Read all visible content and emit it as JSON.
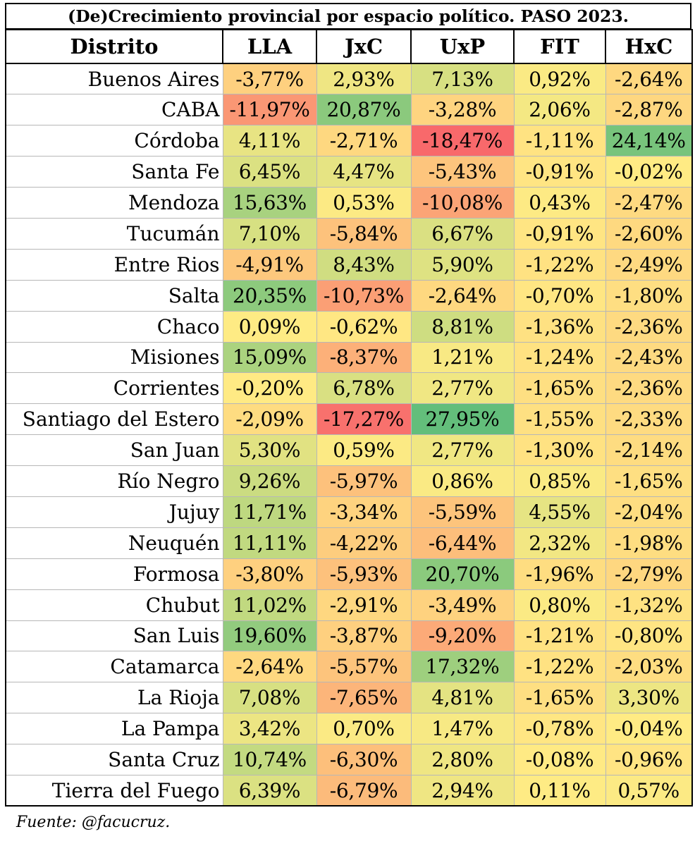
{
  "title": "(De)Crecimiento provincial por espacio político. PASO 2023.",
  "source": "Fuente: @facucruz.",
  "chart_data": {
    "type": "table",
    "title": "(De)Crecimiento provincial por espacio político. PASO 2023.",
    "row_header": "Distrito",
    "columns": [
      "LLA",
      "JxC",
      "UxP",
      "FIT",
      "HxC"
    ],
    "rows": [
      {
        "district": "Buenos Aires",
        "labels": [
          "-3,77%",
          "2,93%",
          "7,13%",
          "0,92%",
          "-2,64%"
        ],
        "values": [
          -3.77,
          2.93,
          7.13,
          0.92,
          -2.64
        ]
      },
      {
        "district": "CABA",
        "labels": [
          "-11,97%",
          "20,87%",
          "-3,28%",
          "2,06%",
          "-2,87%"
        ],
        "values": [
          -11.97,
          20.87,
          -3.28,
          2.06,
          -2.87
        ]
      },
      {
        "district": "Córdoba",
        "labels": [
          "4,11%",
          "-2,71%",
          "-18,47%",
          "-1,11%",
          "24,14%"
        ],
        "values": [
          4.11,
          -2.71,
          -18.47,
          -1.11,
          24.14
        ]
      },
      {
        "district": "Santa Fe",
        "labels": [
          "6,45%",
          "4,47%",
          "-5,43%",
          "-0,91%",
          "-0,02%"
        ],
        "values": [
          6.45,
          4.47,
          -5.43,
          -0.91,
          -0.02
        ]
      },
      {
        "district": "Mendoza",
        "labels": [
          "15,63%",
          "0,53%",
          "-10,08%",
          "0,43%",
          "-2,47%"
        ],
        "values": [
          15.63,
          0.53,
          -10.08,
          0.43,
          -2.47
        ]
      },
      {
        "district": "Tucumán",
        "labels": [
          "7,10%",
          "-5,84%",
          "6,67%",
          "-0,91%",
          "-2,60%"
        ],
        "values": [
          7.1,
          -5.84,
          6.67,
          -0.91,
          -2.6
        ]
      },
      {
        "district": "Entre Rios",
        "labels": [
          "-4,91%",
          "8,43%",
          "5,90%",
          "-1,22%",
          "-2,49%"
        ],
        "values": [
          -4.91,
          8.43,
          5.9,
          -1.22,
          -2.49
        ]
      },
      {
        "district": "Salta",
        "labels": [
          "20,35%",
          "-10,73%",
          "-2,64%",
          "-0,70%",
          "-1,80%"
        ],
        "values": [
          20.35,
          -10.73,
          -2.64,
          -0.7,
          -1.8
        ]
      },
      {
        "district": "Chaco",
        "labels": [
          "0,09%",
          "-0,62%",
          "8,81%",
          "-1,36%",
          "-2,36%"
        ],
        "values": [
          0.09,
          -0.62,
          8.81,
          -1.36,
          -2.36
        ]
      },
      {
        "district": "Misiones",
        "labels": [
          "15,09%",
          "-8,37%",
          "1,21%",
          "-1,24%",
          "-2,43%"
        ],
        "values": [
          15.09,
          -8.37,
          1.21,
          -1.24,
          -2.43
        ]
      },
      {
        "district": "Corrientes",
        "labels": [
          "-0,20%",
          "6,78%",
          "2,77%",
          "-1,65%",
          "-2,36%"
        ],
        "values": [
          -0.2,
          6.78,
          2.77,
          -1.65,
          -2.36
        ]
      },
      {
        "district": "Santiago del Estero",
        "labels": [
          "-2,09%",
          "-17,27%",
          "27,95%",
          "-1,55%",
          "-2,33%"
        ],
        "values": [
          -2.09,
          -17.27,
          27.95,
          -1.55,
          -2.33
        ]
      },
      {
        "district": "San Juan",
        "labels": [
          "5,30%",
          "0,59%",
          "2,77%",
          "-1,30%",
          "-2,14%"
        ],
        "values": [
          5.3,
          0.59,
          2.77,
          -1.3,
          -2.14
        ]
      },
      {
        "district": "Río Negro",
        "labels": [
          "9,26%",
          "-5,97%",
          "0,86%",
          "0,85%",
          "-1,65%"
        ],
        "values": [
          9.26,
          -5.97,
          0.86,
          0.85,
          -1.65
        ]
      },
      {
        "district": "Jujuy",
        "labels": [
          "11,71%",
          "-3,34%",
          "-5,59%",
          "4,55%",
          "-2,04%"
        ],
        "values": [
          11.71,
          -3.34,
          -5.59,
          4.55,
          -2.04
        ]
      },
      {
        "district": "Neuquén",
        "labels": [
          "11,11%",
          "-4,22%",
          "-6,44%",
          "2,32%",
          "-1,98%"
        ],
        "values": [
          11.11,
          -4.22,
          -6.44,
          2.32,
          -1.98
        ]
      },
      {
        "district": "Formosa",
        "labels": [
          "-3,80%",
          "-5,93%",
          "20,70%",
          "-1,96%",
          "-2,79%"
        ],
        "values": [
          -3.8,
          -5.93,
          20.7,
          -1.96,
          -2.79
        ]
      },
      {
        "district": "Chubut",
        "labels": [
          "11,02%",
          "-2,91%",
          "-3,49%",
          "0,80%",
          "-1,32%"
        ],
        "values": [
          11.02,
          -2.91,
          -3.49,
          0.8,
          -1.32
        ]
      },
      {
        "district": "San Luis",
        "labels": [
          "19,60%",
          "-3,87%",
          "-9,20%",
          "-1,21%",
          "-0,80%"
        ],
        "values": [
          19.6,
          -3.87,
          -9.2,
          -1.21,
          -0.8
        ]
      },
      {
        "district": "Catamarca",
        "labels": [
          "-2,64%",
          "-5,57%",
          "17,32%",
          "-1,22%",
          "-2,03%"
        ],
        "values": [
          -2.64,
          -5.57,
          17.32,
          -1.22,
          -2.03
        ]
      },
      {
        "district": "La Rioja",
        "labels": [
          "7,08%",
          "-7,65%",
          "4,81%",
          "-1,65%",
          "3,30%"
        ],
        "values": [
          7.08,
          -7.65,
          4.81,
          -1.65,
          3.3
        ]
      },
      {
        "district": "La Pampa",
        "labels": [
          "3,42%",
          "0,70%",
          "1,47%",
          "-0,78%",
          "-0,04%"
        ],
        "values": [
          3.42,
          0.7,
          1.47,
          -0.78,
          -0.04
        ]
      },
      {
        "district": "Santa Cruz",
        "labels": [
          "10,74%",
          "-6,30%",
          "2,80%",
          "-0,08%",
          "-0,96%"
        ],
        "values": [
          10.74,
          -6.3,
          2.8,
          -0.08,
          -0.96
        ]
      },
      {
        "district": "Tierra del Fuego",
        "labels": [
          "6,39%",
          "-6,79%",
          "2,94%",
          "0,11%",
          "0,57%"
        ],
        "values": [
          6.39,
          -6.79,
          2.94,
          0.11,
          0.57
        ]
      }
    ],
    "color_scale": {
      "min": -18.47,
      "mid": 0,
      "max": 27.95,
      "min_color": "#f8696b",
      "mid_color": "#ffeb84",
      "max_color": "#63be7b"
    }
  }
}
